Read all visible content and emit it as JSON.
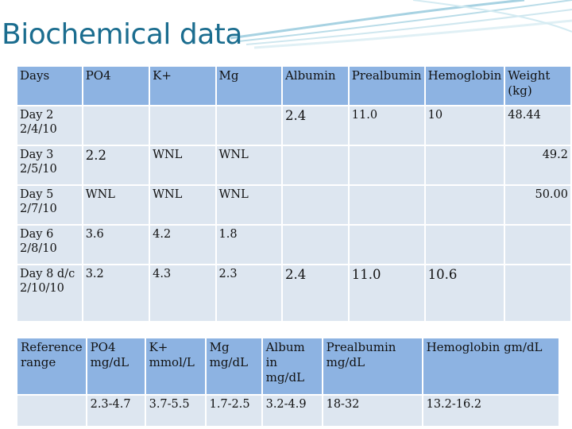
{
  "title": "Biochemical data",
  "main": {
    "headers": [
      "Days",
      "PO4",
      "K+",
      "Mg",
      "Albumin",
      "Prealbumin",
      "Hemoglobin",
      "Weight (kg)"
    ],
    "rows": [
      [
        "Day 2 2/4/10",
        "",
        "",
        "",
        "2.4",
        "11.0",
        "10",
        "48.44"
      ],
      [
        "Day 3 2/5/10",
        "2.2",
        "WNL",
        "WNL",
        "",
        "",
        "",
        "49.2"
      ],
      [
        "Day 5 2/7/10",
        "WNL",
        "WNL",
        "WNL",
        "",
        "",
        "",
        "50.00"
      ],
      [
        "Day 6 2/8/10",
        "3.6",
        "4.2",
        "1.8",
        "",
        "",
        "",
        ""
      ],
      [
        "Day 8 d/c 2/10/10",
        "3.2",
        "4.3",
        "2.3",
        "2.4",
        "11.0",
        "10.6",
        ""
      ]
    ]
  },
  "reference": {
    "headers": [
      "Reference range",
      "PO4 mg/dL",
      "K+ mmol/L",
      "Mg mg/dL",
      "Album in mg/dL",
      "Prealbumin mg/dL",
      "Hemoglobin gm/dL"
    ],
    "values": [
      "",
      "2.3-4.7",
      "3.7-5.5",
      "1.7-2.5",
      "3.2-4.9",
      "18-32",
      "13.2-16.2"
    ]
  },
  "colors": {
    "title": "#1b6d8f",
    "header_fill": "#8db3e2",
    "cell_fill": "#dde6f0"
  }
}
